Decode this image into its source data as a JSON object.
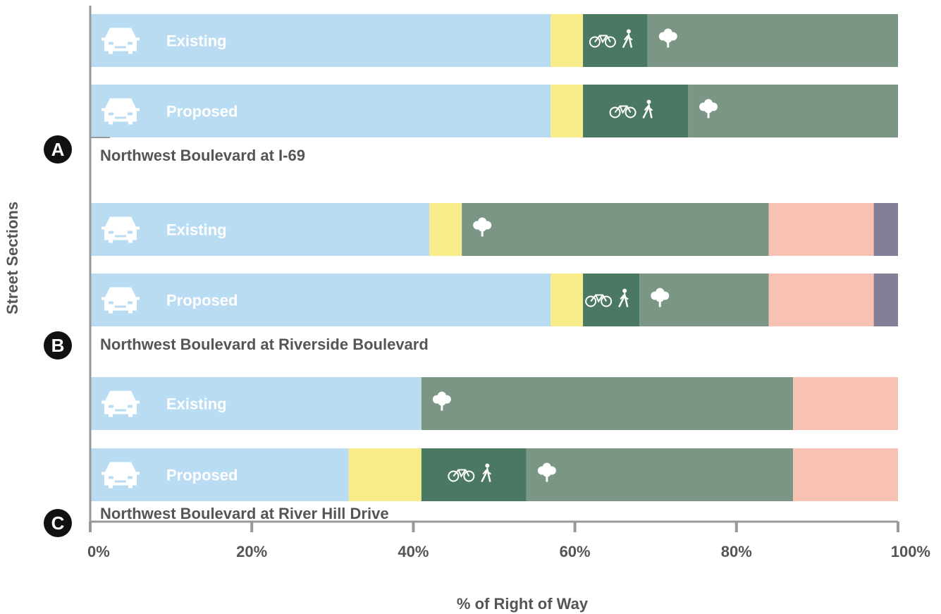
{
  "chart_data": {
    "type": "bar",
    "orientation": "horizontal",
    "stacked": true,
    "xlabel": "% of Right of Way",
    "ylabel": "Street Sections",
    "xlim": [
      0,
      100
    ],
    "xticks": [
      "0%",
      "20%",
      "40%",
      "60%",
      "80%",
      "100%"
    ],
    "xtick_values": [
      0,
      20,
      40,
      60,
      80,
      100
    ],
    "segment_colors": {
      "vehicle": "#badcf2",
      "median": "#f8ec8a",
      "bike_ped": "#4b7862",
      "landscape": "#7c9686",
      "salmon": "#f7c2b4",
      "purple": "#827f97"
    },
    "groups": [
      {
        "letter": "A",
        "title": "Northwest Boulevard at I-69",
        "rows": [
          {
            "label": "Existing",
            "segments": [
              {
                "kind": "vehicle",
                "value": 57
              },
              {
                "kind": "median",
                "value": 4
              },
              {
                "kind": "bike_ped",
                "value": 8
              },
              {
                "kind": "landscape",
                "value": 31
              }
            ]
          },
          {
            "label": "Proposed",
            "segments": [
              {
                "kind": "vehicle",
                "value": 57
              },
              {
                "kind": "median",
                "value": 4
              },
              {
                "kind": "bike_ped",
                "value": 13
              },
              {
                "kind": "landscape",
                "value": 26
              }
            ]
          }
        ]
      },
      {
        "letter": "B",
        "title": "Northwest Boulevard at Riverside Boulevard",
        "rows": [
          {
            "label": "Existing",
            "segments": [
              {
                "kind": "vehicle",
                "value": 42
              },
              {
                "kind": "median",
                "value": 4
              },
              {
                "kind": "landscape",
                "value": 38
              },
              {
                "kind": "salmon",
                "value": 13
              },
              {
                "kind": "purple",
                "value": 3
              }
            ]
          },
          {
            "label": "Proposed",
            "segments": [
              {
                "kind": "vehicle",
                "value": 57
              },
              {
                "kind": "median",
                "value": 4
              },
              {
                "kind": "bike_ped",
                "value": 7
              },
              {
                "kind": "landscape",
                "value": 16
              },
              {
                "kind": "salmon",
                "value": 13
              },
              {
                "kind": "purple",
                "value": 3
              }
            ]
          }
        ]
      },
      {
        "letter": "C",
        "title": "Northwest Boulevard at River Hill Drive",
        "rows": [
          {
            "label": "Existing",
            "segments": [
              {
                "kind": "vehicle",
                "value": 41
              },
              {
                "kind": "landscape",
                "value": 46
              },
              {
                "kind": "salmon",
                "value": 13
              }
            ]
          },
          {
            "label": "Proposed",
            "segments": [
              {
                "kind": "vehicle",
                "value": 32
              },
              {
                "kind": "median",
                "value": 9
              },
              {
                "kind": "bike_ped",
                "value": 13
              },
              {
                "kind": "landscape",
                "value": 33
              },
              {
                "kind": "salmon",
                "value": 13
              }
            ]
          }
        ]
      }
    ]
  }
}
